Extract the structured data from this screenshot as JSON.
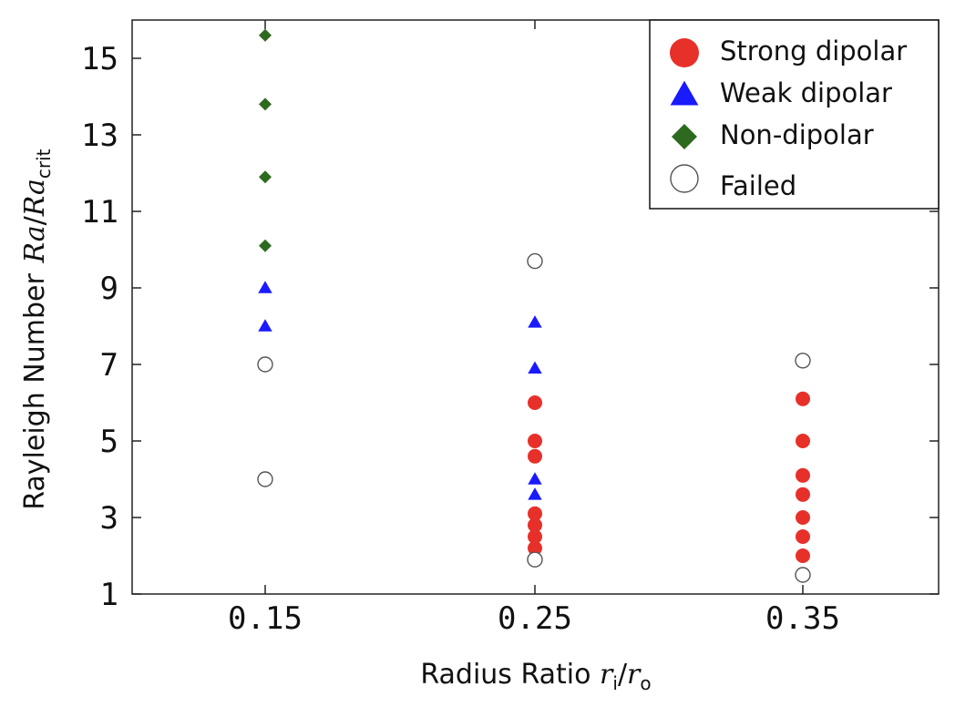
{
  "chart_data": {
    "type": "scatter",
    "title": "",
    "xlabel": "Radius Ratio r_i/r_o",
    "xlabel_parts": {
      "text": "Radius Ratio ",
      "var1": "r",
      "sub1": "i",
      "slash": "/",
      "var2": "r",
      "sub2": "o"
    },
    "ylabel": "Rayleigh Number Ra/Ra_crit",
    "ylabel_parts": {
      "text": "Rayleigh Number",
      "var1": "Ra",
      "slash": "/",
      "var2": "Ra",
      "sub": "crit"
    },
    "x_categories": [
      "0.15",
      "0.25",
      "0.35"
    ],
    "y_ticks": [
      "1",
      "3",
      "5",
      "7",
      "9",
      "11",
      "13",
      "15"
    ],
    "ylim": [
      1,
      16
    ],
    "legend_position": "top-right",
    "series": [
      {
        "name": "Strong dipolar",
        "marker": "circle",
        "color": "#e8302a",
        "points": [
          [
            "0.25",
            2.2
          ],
          [
            "0.25",
            2.5
          ],
          [
            "0.25",
            2.8
          ],
          [
            "0.25",
            3.1
          ],
          [
            "0.25",
            4.6
          ],
          [
            "0.25",
            5.0
          ],
          [
            "0.25",
            6.0
          ],
          [
            "0.35",
            2.0
          ],
          [
            "0.35",
            2.5
          ],
          [
            "0.35",
            3.0
          ],
          [
            "0.35",
            3.6
          ],
          [
            "0.35",
            4.1
          ],
          [
            "0.35",
            5.0
          ],
          [
            "0.35",
            6.1
          ]
        ]
      },
      {
        "name": "Weak dipolar",
        "marker": "triangle",
        "color": "#1a1aff",
        "points": [
          [
            "0.15",
            8.0
          ],
          [
            "0.15",
            9.0
          ],
          [
            "0.25",
            3.6
          ],
          [
            "0.25",
            4.0
          ],
          [
            "0.25",
            6.9
          ],
          [
            "0.25",
            8.1
          ]
        ]
      },
      {
        "name": "Non-dipolar",
        "marker": "diamond",
        "color": "#2d6a1f",
        "points": [
          [
            "0.15",
            10.1
          ],
          [
            "0.15",
            11.9
          ],
          [
            "0.15",
            13.8
          ],
          [
            "0.15",
            15.6
          ]
        ]
      },
      {
        "name": "Failed",
        "marker": "open-circle",
        "color": "#555555",
        "points": [
          [
            "0.15",
            4.0
          ],
          [
            "0.15",
            7.0
          ],
          [
            "0.25",
            1.9
          ],
          [
            "0.25",
            9.7
          ],
          [
            "0.35",
            1.5
          ],
          [
            "0.35",
            7.1
          ]
        ]
      }
    ]
  }
}
